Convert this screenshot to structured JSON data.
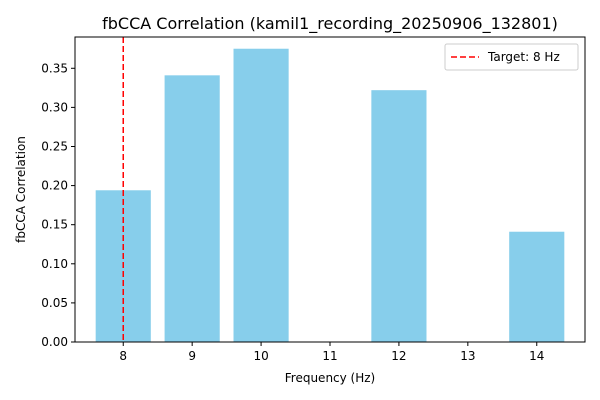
{
  "chart_data": {
    "type": "bar",
    "title": "fbCCA Correlation (kamil1_recording_20250906_132801)",
    "xlabel": "Frequency (Hz)",
    "ylabel": "fbCCA Correlation",
    "x": [
      8,
      9,
      10,
      12,
      14
    ],
    "values": [
      0.194,
      0.341,
      0.375,
      0.322,
      0.141
    ],
    "xlim": [
      7.3,
      14.7
    ],
    "ylim": [
      0,
      0.39
    ],
    "xticks": [
      8,
      9,
      10,
      11,
      12,
      13,
      14
    ],
    "yticks": [
      0.0,
      0.05,
      0.1,
      0.15,
      0.2,
      0.25,
      0.3,
      0.35
    ],
    "ytick_labels": [
      "0.00",
      "0.05",
      "0.10",
      "0.15",
      "0.20",
      "0.25",
      "0.30",
      "0.35"
    ],
    "bar_color": "#87CEEB",
    "target_line": {
      "x": 8,
      "label": "Target: 8 Hz",
      "color": "#FF0000",
      "style": "dashed"
    },
    "legend": {
      "position": "top-right"
    },
    "grid": false
  }
}
